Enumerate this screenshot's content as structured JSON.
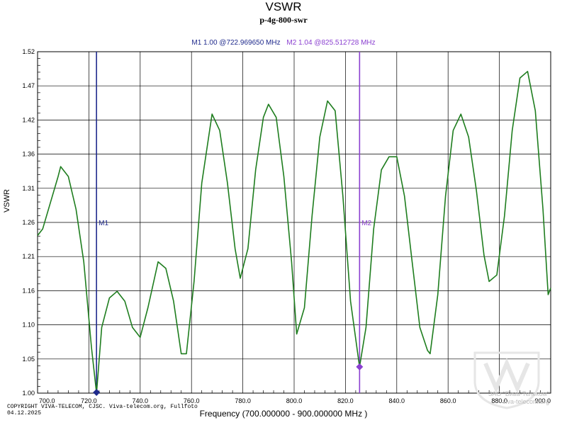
{
  "header": {
    "title": "VSWR",
    "subtitle": "p-4g-800-swr",
    "m1_readout": "M1  1.00 @722.969650 MHz",
    "m2_readout": "M2  1.04 @825.512728 MHz"
  },
  "footer": {
    "copyright": "COPYRIGHT VIVA-TELECOM, CJSC. Viva-telecom.org, Fullfoto",
    "date": "04.12.2025",
    "watermark_line1": "ЗАО \"Вива-Телеком\"",
    "watermark_line2": "viva-telecom.org"
  },
  "colors": {
    "trace": "#1e7d1e",
    "m1": "#1f2a8c",
    "m2": "#8a3fd0",
    "grid": "#000000"
  },
  "chart_data": {
    "type": "line",
    "title": "VSWR",
    "subtitle": "p-4g-800-swr",
    "xlabel": "Frequency (700.000000 - 900.000000 MHz )",
    "ylabel": "VSWR",
    "xlim": [
      700,
      900
    ],
    "ylim": [
      1.0,
      1.52
    ],
    "grid": true,
    "x_ticks": [
      "700.0",
      "720.0",
      "740.0",
      "760.0",
      "780.0",
      "800.0",
      "820.0",
      "840.0",
      "860.0",
      "880.0",
      "900.0"
    ],
    "y_ticks": [
      "1.00",
      "1.05",
      "1.10",
      "1.16",
      "1.21",
      "1.26",
      "1.31",
      "1.36",
      "1.42",
      "1.47",
      "1.52"
    ],
    "series": [
      {
        "x": [
          700,
          702,
          705,
          708,
          709,
          712,
          715,
          718,
          721,
          722.97,
          725,
          728,
          731,
          734,
          737,
          740,
          743,
          747,
          750,
          753,
          756,
          758,
          761,
          764,
          768,
          771,
          774,
          777,
          779,
          782,
          785,
          788,
          790,
          793,
          796,
          799,
          801,
          804,
          807,
          810,
          813,
          816,
          819,
          822,
          825.5,
          828,
          831,
          834,
          837,
          840,
          843,
          846,
          849,
          852,
          853,
          856,
          859,
          862,
          865,
          868,
          871,
          874,
          876,
          879,
          882,
          885,
          888,
          891,
          894,
          897,
          899,
          900
        ],
        "y": [
          1.24,
          1.25,
          1.29,
          1.33,
          1.345,
          1.33,
          1.28,
          1.2,
          1.07,
          1.0,
          1.1,
          1.145,
          1.155,
          1.14,
          1.1,
          1.085,
          1.13,
          1.2,
          1.19,
          1.14,
          1.06,
          1.06,
          1.17,
          1.32,
          1.425,
          1.4,
          1.32,
          1.22,
          1.175,
          1.22,
          1.34,
          1.42,
          1.44,
          1.42,
          1.33,
          1.2,
          1.09,
          1.13,
          1.27,
          1.39,
          1.445,
          1.43,
          1.3,
          1.14,
          1.04,
          1.1,
          1.25,
          1.34,
          1.36,
          1.36,
          1.3,
          1.2,
          1.1,
          1.065,
          1.06,
          1.15,
          1.3,
          1.4,
          1.425,
          1.39,
          1.31,
          1.21,
          1.17,
          1.18,
          1.27,
          1.4,
          1.48,
          1.49,
          1.43,
          1.28,
          1.15,
          1.16
        ]
      }
    ],
    "markers": [
      {
        "label": "M1",
        "x": 722.97,
        "y": 1.0
      },
      {
        "label": "M2",
        "x": 825.51,
        "y": 1.04
      }
    ]
  }
}
